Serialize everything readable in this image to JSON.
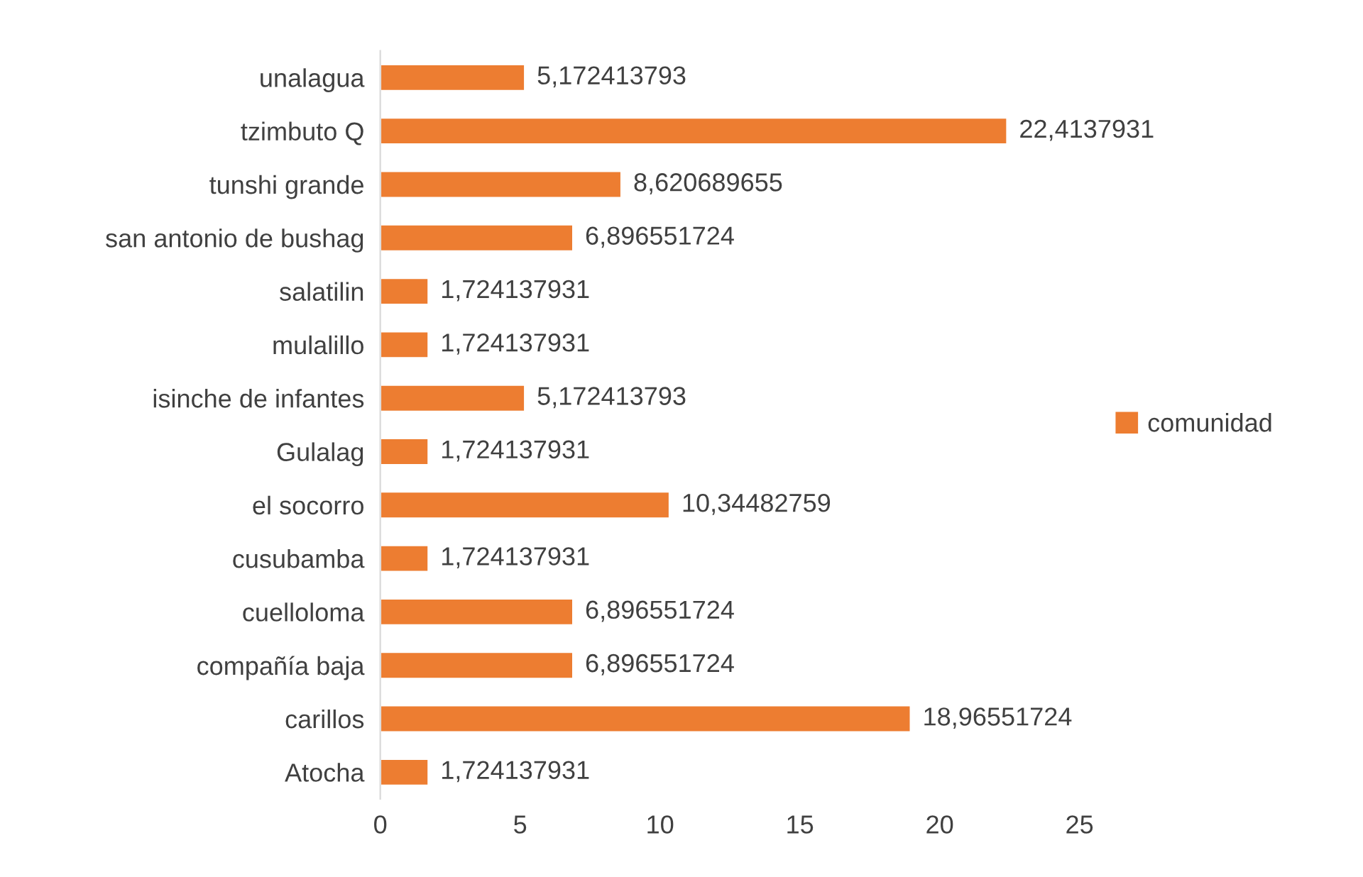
{
  "chart_data": {
    "type": "bar",
    "orientation": "horizontal",
    "categories": [
      "unalagua",
      "tzimbuto Q",
      "tunshi grande",
      "san antonio de bushag",
      "salatilin",
      "mulalillo",
      "isinche de infantes",
      "Gulalag",
      "el socorro",
      "cusubamba",
      "cuelloloma",
      "compañía baja",
      "carillos",
      "Atocha"
    ],
    "series": [
      {
        "name": "comunidad",
        "color": "#ed7d31",
        "values": [
          5.172413793,
          22.4137931,
          8.620689655,
          6.896551724,
          1.724137931,
          1.724137931,
          5.172413793,
          1.724137931,
          10.34482759,
          1.724137931,
          6.896551724,
          6.896551724,
          18.96551724,
          1.724137931
        ],
        "value_labels": [
          "5,172413793",
          "22,4137931",
          "8,620689655",
          "6,896551724",
          "1,724137931",
          "1,724137931",
          "5,172413793",
          "1,724137931",
          "10,34482759",
          "1,724137931",
          "6,896551724",
          "6,896551724",
          "18,96551724",
          "1,724137931"
        ]
      }
    ],
    "xlim": [
      0,
      25
    ],
    "xticks": [
      0,
      5,
      10,
      15,
      20,
      25
    ],
    "grid": false,
    "legend": "right"
  }
}
